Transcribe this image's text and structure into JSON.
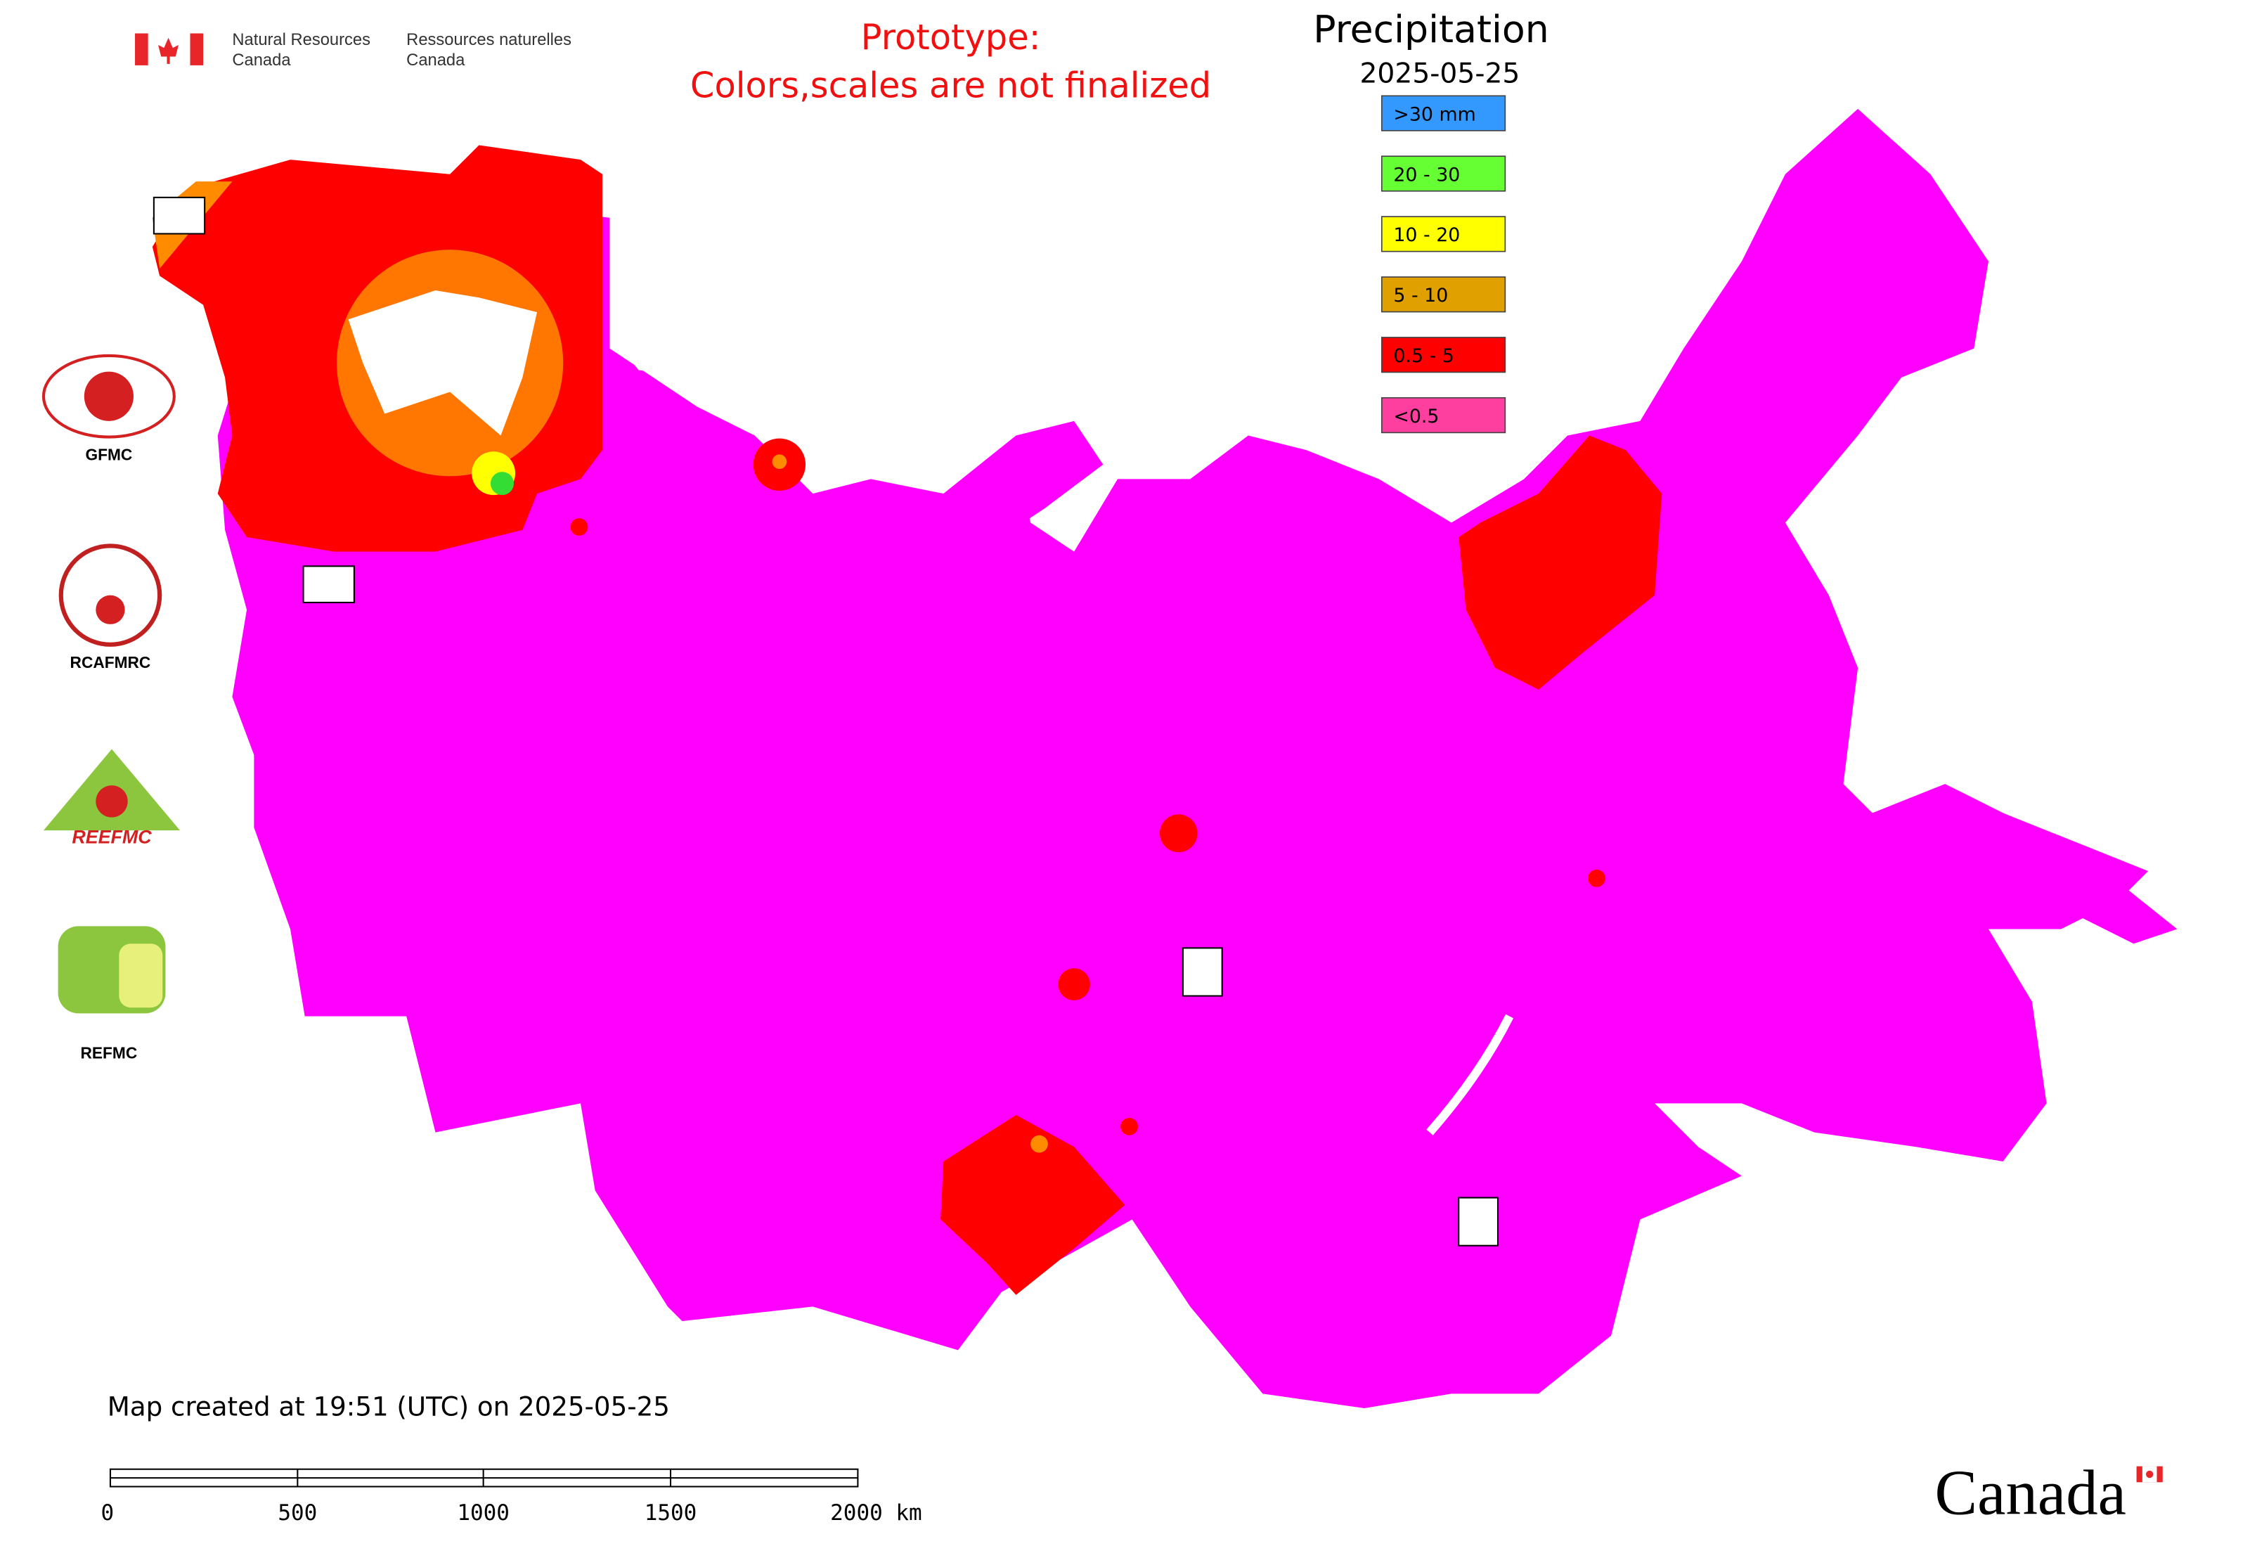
{
  "header": {
    "agency_en": [
      "Natural Resources",
      "Canada"
    ],
    "agency_fr": [
      "Ressources naturelles",
      "Canada"
    ],
    "notice": [
      "Prototype:",
      "Colors,scales are not finalized"
    ],
    "title": "Precipitation",
    "date": "2025-05-25"
  },
  "legend": [
    {
      "label": ">30 mm",
      "color": "#3399ff"
    },
    {
      "label": "20 - 30",
      "color": "#66ff33"
    },
    {
      "label": "10 - 20",
      "color": "#ffff00"
    },
    {
      "label": "5 - 10",
      "color": "#e0a000"
    },
    {
      "label": "0.5 - 5",
      "color": "#ff0000"
    },
    {
      "label": "<0.5",
      "color": "#ff3fa0"
    }
  ],
  "logos": {
    "gfmc": "GFMC",
    "rcafmrc": "RCAFMRC",
    "reefmc": "REEFMC",
    "refmc": "REFMC"
  },
  "footer": {
    "created": "Map created at 19:51 (UTC) on 2025-05-25",
    "scale_labels": [
      "0",
      "500",
      "1000",
      "1500",
      "2000 km"
    ],
    "wordmark": "Canada"
  }
}
